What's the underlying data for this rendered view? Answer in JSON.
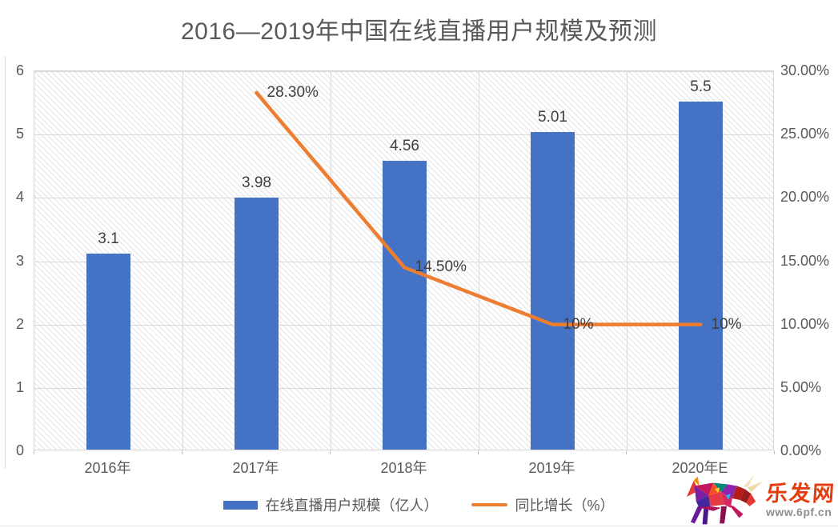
{
  "title": "2016—2019年中国在线直播用户规模及预测",
  "chart_data": {
    "type": "bar",
    "subtype": "combo-bar-line",
    "categories": [
      "2016年",
      "2017年",
      "2018年",
      "2019年",
      "2020年E"
    ],
    "series": [
      {
        "name": "在线直播用户规模（亿人）",
        "chart": "bar",
        "axis": "left",
        "color": "#4472C4",
        "values": [
          3.1,
          3.98,
          4.56,
          5.01,
          5.5
        ],
        "data_labels": [
          "3.1",
          "3.98",
          "4.56",
          "5.01",
          "5.5"
        ]
      },
      {
        "name": "同比增长（%）",
        "chart": "line",
        "axis": "right",
        "color": "#ED7D31",
        "values": [
          null,
          28.3,
          14.5,
          10,
          10
        ],
        "data_labels": [
          null,
          "28.30%",
          "14.50%",
          "10%",
          "10%"
        ]
      }
    ],
    "left_axis": {
      "min": 0,
      "max": 6,
      "ticks": [
        "0",
        "1",
        "2",
        "3",
        "4",
        "5",
        "6"
      ]
    },
    "right_axis": {
      "min": 0,
      "max": 30,
      "ticks": [
        "0.00%",
        "5.00%",
        "10.00%",
        "15.00%",
        "20.00%",
        "25.00%",
        "30.00%"
      ]
    },
    "grid": true,
    "legend_position": "bottom",
    "plot_background": "diagonal-hatch"
  },
  "watermark": {
    "brand": "乐发网",
    "url": "www.6pf.cn"
  }
}
